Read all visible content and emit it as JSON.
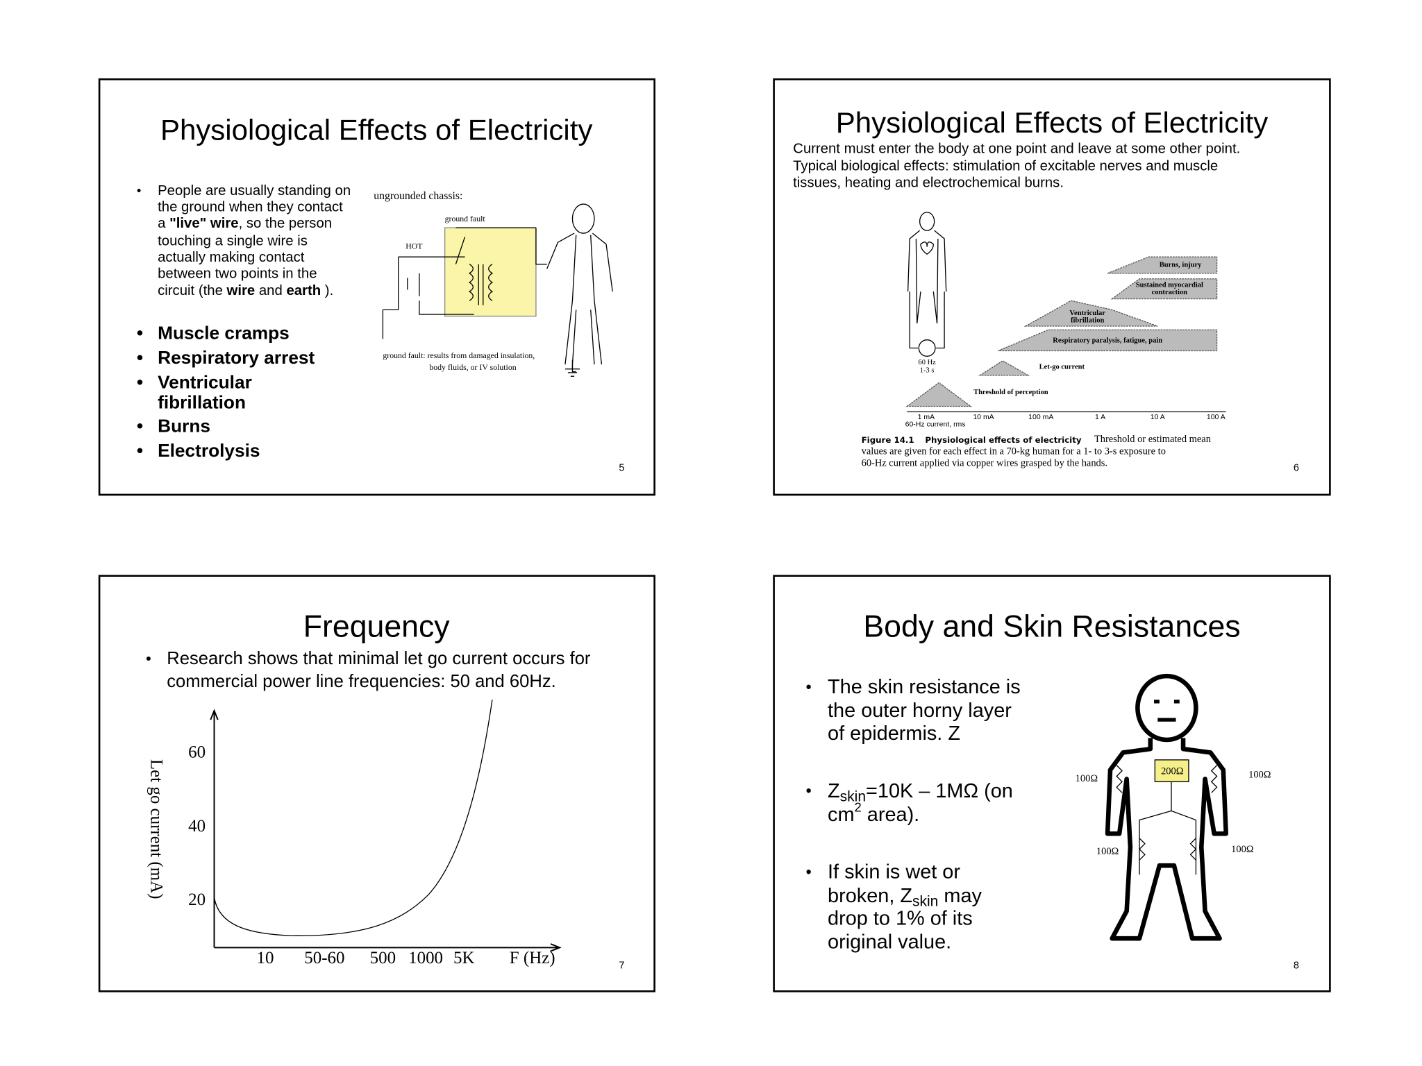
{
  "slides": [
    {
      "title": "Physiological Effects of Electricity",
      "paragraph": [
        "People are usually standing on",
        "the ground when they contact",
        "a ",
        "\"live\" wire",
        ", so the person",
        "touching a single wire is",
        "actually making contact",
        "between two points in the",
        "circuit (the ",
        "wire",
        " and ",
        "earth",
        " )."
      ],
      "bullets": [
        "Muscle cramps",
        "Respiratory arrest",
        "Ventricular",
        "fibrillation",
        "Burns",
        "Electrolysis"
      ],
      "figure": [
        "ungrounded chassis:",
        "ground fault",
        "HOT",
        "ground fault: results from damaged insulation,",
        "body fluids, or IV solution"
      ],
      "page": "5"
    },
    {
      "title": "Physiological Effects of Electricity",
      "lines": [
        "Current must enter the body at one point and leave at some other point.",
        "Typical biological effects: stimulation of excitable nerves and muscle",
        "tissues, heating and electrochemical burns."
      ],
      "figure": [
        "60 Hz",
        "1-3 s",
        "Let-go current",
        "Threshold of perception",
        "Respiratory paralysis, fatigue, pain",
        "Ventricular",
        "fibrillation",
        "Sustained myocardial",
        "contraction",
        "Burns, injury"
      ],
      "axis": [
        "1 mA",
        "10 mA",
        "100 mA",
        "1 A",
        "10 A",
        "100 A",
        "60-Hz current, rms"
      ],
      "caption": [
        "Figure 14.1",
        "Physiological effects of electricity",
        "Threshold or estimated mean",
        "values are given for each effect in a 70-kg human for a 1- to 3-s exposure to",
        "60-Hz current applied via copper wires grasped by the hands."
      ],
      "page": "6"
    },
    {
      "title": "Frequency",
      "bullet": [
        "Research shows that minimal let go current occurs for",
        "commercial power line frequencies: 50 and 60Hz."
      ],
      "y_label": "Let go current (mA)",
      "y_ticks": [
        "60",
        "40",
        "20"
      ],
      "x_labels": [
        "10",
        "50-60",
        "500",
        "1000",
        "5K",
        "F (Hz)"
      ],
      "page": "7"
    },
    {
      "title": "Body and Skin Resistances",
      "bullets": [
        [
          "The skin resistance is",
          "the outer horny layer",
          "of epidermis. Z"
        ],
        [
          "Z",
          "skin",
          "=10K – 1MΩ (on",
          "cm",
          "2",
          " area)."
        ],
        [
          "If skin is wet or",
          "broken, Z",
          "skin",
          " may",
          "drop to 1% of its",
          "original value."
        ]
      ],
      "figure": [
        "200Ω",
        "100Ω",
        "100Ω",
        "100Ω",
        "100Ω"
      ],
      "page": "8"
    }
  ]
}
